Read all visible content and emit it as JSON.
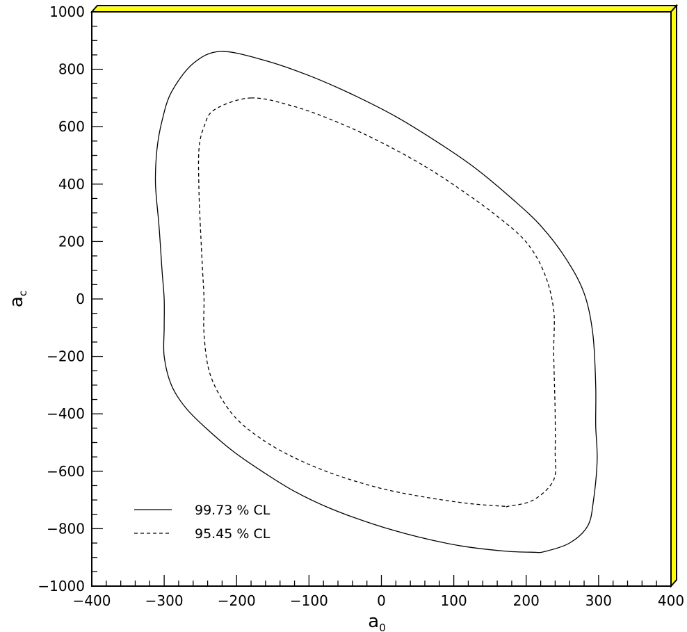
{
  "chart_data": {
    "type": "line",
    "xlabel": {
      "main": "a",
      "sub": "0"
    },
    "ylabel": {
      "main": "a",
      "sub": "c"
    },
    "xlim": [
      -400,
      400
    ],
    "ylim": [
      -1000,
      1000
    ],
    "x_ticks": [
      -400,
      -300,
      -200,
      -100,
      0,
      100,
      200,
      300,
      400
    ],
    "y_ticks": [
      -1000,
      -800,
      -600,
      -400,
      -200,
      0,
      200,
      400,
      600,
      800,
      1000
    ],
    "x_tick_labels": [
      "−400",
      "−300",
      "−200",
      "−100",
      "0",
      "100",
      "200",
      "300",
      "400"
    ],
    "y_tick_labels": [
      "−1000",
      "−800",
      "−600",
      "−400",
      "−200",
      "0",
      "200",
      "400",
      "600",
      "800",
      "1000"
    ],
    "x_minor_step": 20,
    "y_minor_step": 50,
    "grid": false,
    "legend_position": "bottom-left",
    "frame_accent_color": "#ffff00",
    "series": [
      {
        "name": "99.73 % CL",
        "style": "solid",
        "center": [
          0,
          -10
        ],
        "points": [
          [
            -222,
            862
          ],
          [
            -160,
            830
          ],
          [
            -100,
            778
          ],
          [
            -40,
            712
          ],
          [
            20,
            635
          ],
          [
            80,
            542
          ],
          [
            130,
            455
          ],
          [
            180,
            350
          ],
          [
            220,
            255
          ],
          [
            255,
            140
          ],
          [
            280,
            20
          ],
          [
            292,
            -120
          ],
          [
            296,
            -300
          ],
          [
            296,
            -440
          ],
          [
            298,
            -560
          ],
          [
            293,
            -700
          ],
          [
            285,
            -790
          ],
          [
            260,
            -850
          ],
          [
            225,
            -880
          ],
          [
            210,
            -882
          ],
          [
            170,
            -878
          ],
          [
            110,
            -860
          ],
          [
            50,
            -828
          ],
          [
            -10,
            -785
          ],
          [
            -70,
            -730
          ],
          [
            -120,
            -670
          ],
          [
            -165,
            -600
          ],
          [
            -205,
            -530
          ],
          [
            -240,
            -455
          ],
          [
            -270,
            -380
          ],
          [
            -290,
            -300
          ],
          [
            -300,
            -200
          ],
          [
            -300,
            -100
          ],
          [
            -300,
            0
          ],
          [
            -303,
            100
          ],
          [
            -307,
            250
          ],
          [
            -312,
            400
          ],
          [
            -310,
            520
          ],
          [
            -303,
            620
          ],
          [
            -290,
            720
          ],
          [
            -260,
            820
          ],
          [
            -222,
            862
          ]
        ]
      },
      {
        "name": "95.45 % CL",
        "style": "dashed",
        "center": [
          0,
          -10
        ],
        "points": [
          [
            -180,
            700
          ],
          [
            -120,
            670
          ],
          [
            -60,
            615
          ],
          [
            0,
            545
          ],
          [
            60,
            462
          ],
          [
            110,
            380
          ],
          [
            160,
            288
          ],
          [
            200,
            198
          ],
          [
            225,
            90
          ],
          [
            238,
            -40
          ],
          [
            238,
            -190
          ],
          [
            240,
            -400
          ],
          [
            240,
            -530
          ],
          [
            238,
            -630
          ],
          [
            210,
            -700
          ],
          [
            175,
            -722
          ],
          [
            170,
            -722
          ],
          [
            120,
            -712
          ],
          [
            60,
            -690
          ],
          [
            0,
            -660
          ],
          [
            -60,
            -615
          ],
          [
            -110,
            -565
          ],
          [
            -155,
            -505
          ],
          [
            -195,
            -430
          ],
          [
            -220,
            -350
          ],
          [
            -238,
            -250
          ],
          [
            -245,
            -120
          ],
          [
            -245,
            0
          ],
          [
            -247,
            100
          ],
          [
            -250,
            250
          ],
          [
            -252,
            380
          ],
          [
            -252,
            520
          ],
          [
            -245,
            600
          ],
          [
            -230,
            660
          ],
          [
            -180,
            700
          ]
        ]
      }
    ]
  }
}
